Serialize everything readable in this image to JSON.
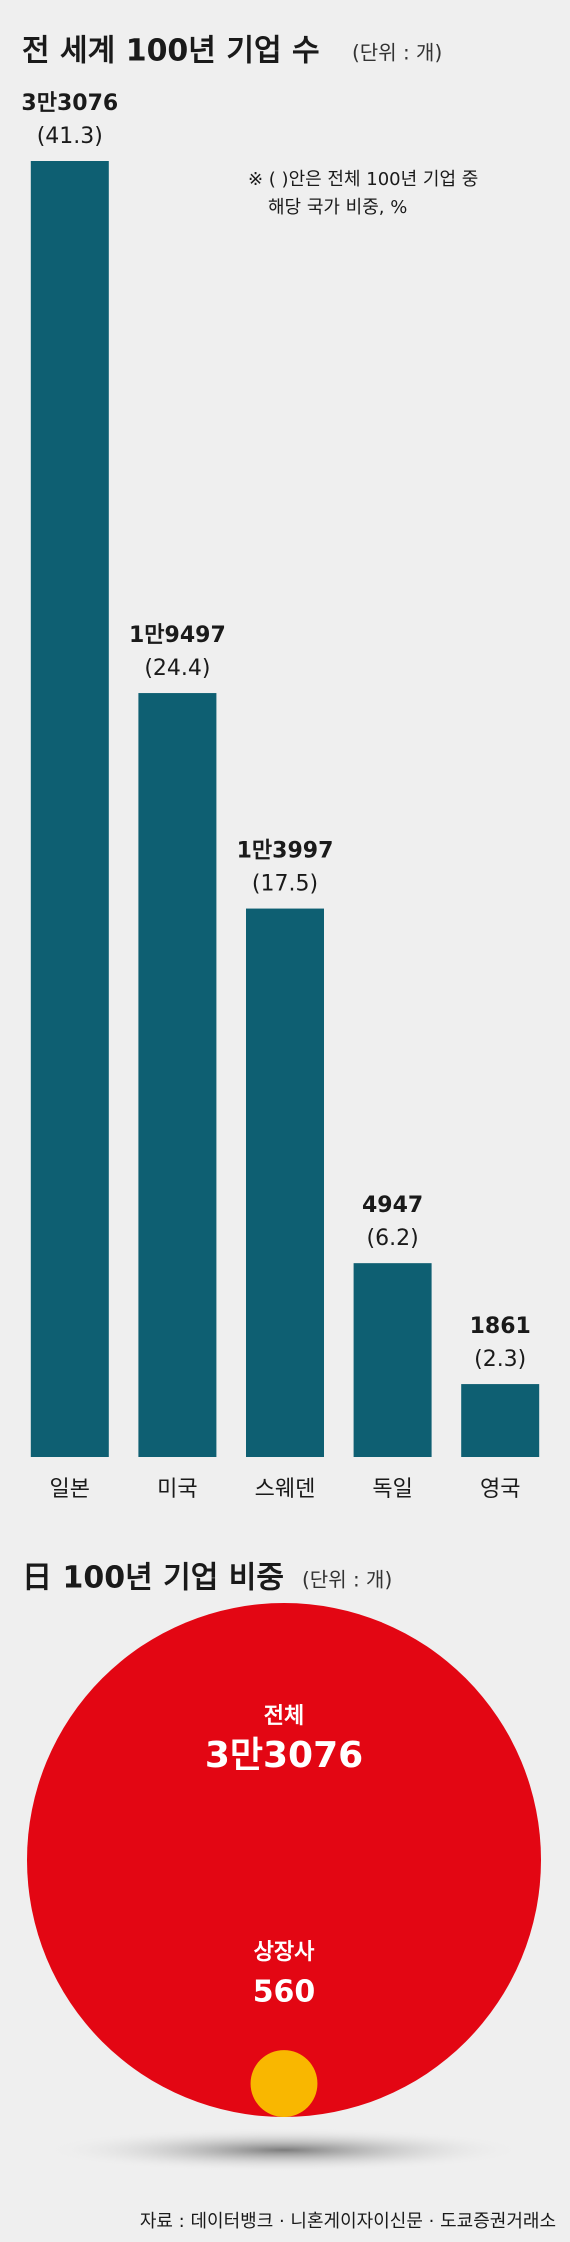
{
  "chart_data": [
    {
      "type": "bar",
      "title": "전 세계 100년 기업 수",
      "unit": "(단위 : 개)",
      "note": [
        "※ ( )안은 전체 100년 기업 중",
        "해당 국가 비중, %"
      ],
      "categories": [
        "일본",
        "미국",
        "스웨덴",
        "독일",
        "영국"
      ],
      "values": [
        33076,
        19497,
        13997,
        4947,
        1861
      ],
      "value_labels": [
        "3만3076",
        "1만9497",
        "1만3997",
        "4947",
        "1861"
      ],
      "share_labels": [
        "(41.3)",
        "(24.4)",
        "(17.5)",
        "(6.2)",
        "(2.3)"
      ],
      "color": "#0e5f72"
    },
    {
      "type": "circle",
      "title": "日 100년 기업 비중",
      "unit": "(단위 : 개)",
      "categories": [
        "전체",
        "상장사"
      ],
      "values": [
        33076,
        560
      ],
      "value_labels": [
        "3만3076",
        "560"
      ],
      "colors": [
        "#e30613",
        "#f9b700"
      ]
    }
  ],
  "source": "자료 : 데이터뱅크 · 니혼게이자이신문 · 도쿄증권거래소"
}
